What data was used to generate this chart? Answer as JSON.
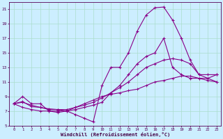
{
  "xlabel": "Windchill (Refroidissement éolien,°C)",
  "background_color": "#cceeff",
  "grid_color": "#aaddcc",
  "line_color": "#880088",
  "xlim": [
    -0.5,
    23.5
  ],
  "ylim": [
    5,
    22
  ],
  "yticks": [
    5,
    7,
    9,
    11,
    13,
    15,
    17,
    19,
    21
  ],
  "xticks": [
    0,
    1,
    2,
    3,
    4,
    5,
    6,
    7,
    8,
    9,
    10,
    11,
    12,
    13,
    14,
    15,
    16,
    17,
    18,
    19,
    20,
    21,
    22,
    23
  ],
  "line1_x": [
    0,
    1,
    2,
    3,
    4,
    5,
    6,
    7,
    8,
    9,
    10,
    11,
    12,
    13,
    14,
    15,
    16,
    17,
    18,
    19,
    20,
    21,
    22,
    23
  ],
  "line1_y": [
    8.0,
    9.0,
    8.0,
    8.0,
    7.0,
    7.0,
    7.0,
    6.5,
    6.0,
    5.5,
    10.5,
    13.0,
    13.0,
    15.0,
    18.0,
    20.2,
    21.2,
    21.3,
    19.5,
    17.0,
    14.0,
    12.0,
    11.5,
    11.0
  ],
  "line2_x": [
    0,
    1,
    2,
    3,
    4,
    5,
    6,
    7,
    8,
    9,
    10,
    11,
    12,
    13,
    14,
    15,
    16,
    17,
    18,
    19,
    20,
    21,
    22,
    23
  ],
  "line2_y": [
    8.0,
    8.3,
    7.6,
    7.5,
    7.2,
    7.2,
    7.0,
    7.2,
    7.5,
    7.8,
    8.2,
    9.5,
    10.5,
    12.0,
    13.5,
    14.5,
    15.0,
    17.0,
    13.0,
    12.0,
    11.5,
    11.5,
    11.5,
    12.0
  ],
  "line3_x": [
    0,
    1,
    2,
    3,
    4,
    5,
    6,
    7,
    8,
    9,
    10,
    11,
    12,
    13,
    14,
    15,
    16,
    17,
    18,
    19,
    20,
    21,
    22,
    23
  ],
  "line3_y": [
    8.0,
    8.2,
    7.8,
    7.5,
    7.3,
    7.2,
    7.2,
    7.5,
    7.8,
    8.2,
    8.8,
    9.5,
    10.2,
    11.0,
    12.0,
    13.0,
    13.5,
    14.0,
    14.2,
    14.0,
    13.5,
    12.0,
    12.0,
    12.0
  ],
  "line4_x": [
    0,
    1,
    2,
    3,
    4,
    5,
    6,
    7,
    8,
    9,
    10,
    11,
    12,
    13,
    14,
    15,
    16,
    17,
    18,
    19,
    20,
    21,
    22,
    23
  ],
  "line4_y": [
    8.0,
    7.5,
    7.2,
    7.0,
    7.0,
    6.8,
    7.0,
    7.5,
    8.0,
    8.5,
    9.0,
    9.3,
    9.5,
    9.8,
    10.0,
    10.5,
    11.0,
    11.2,
    11.5,
    11.8,
    11.8,
    11.5,
    11.2,
    11.0
  ]
}
